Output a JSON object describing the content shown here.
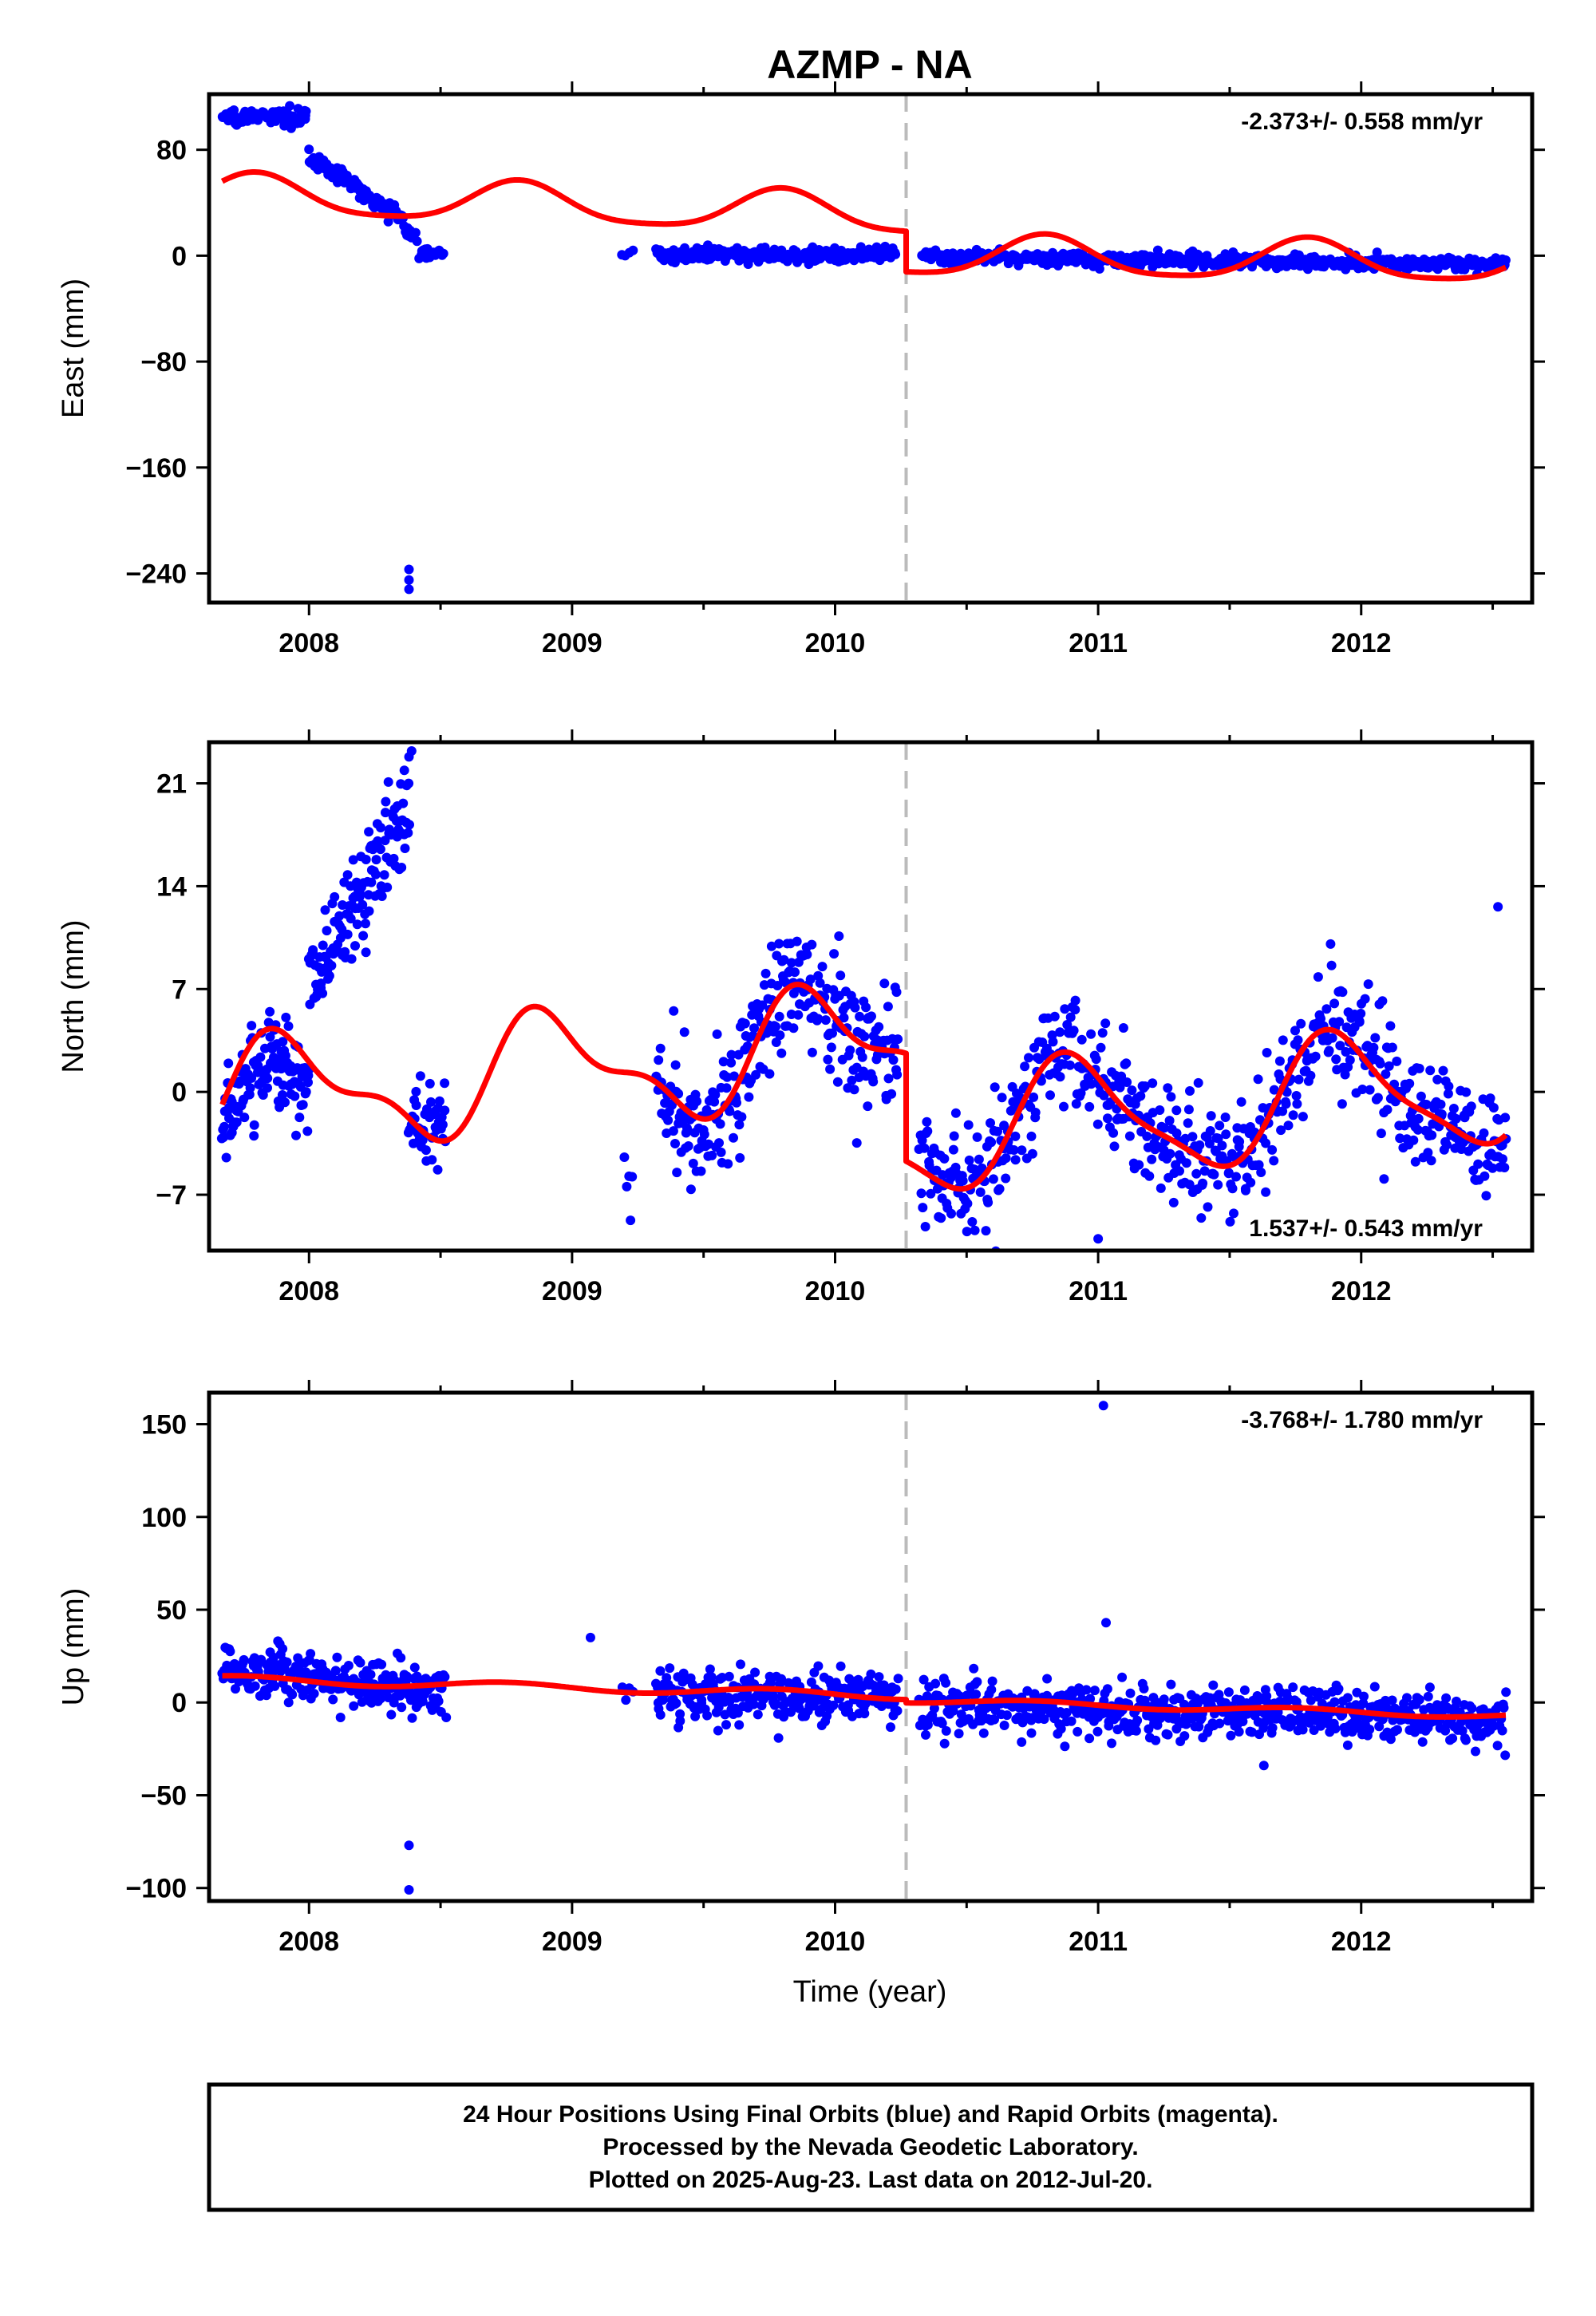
{
  "figure": {
    "title": "AZMP - NA",
    "xlabel": "Time (year)",
    "footer": [
      "24 Hour Positions Using Final Orbits (blue) and Rapid Orbits (magenta).",
      "Processed by the Nevada Geodetic Laboratory.",
      "Plotted on 2025-Aug-23. Last data on 2012-Jul-20."
    ],
    "colors": {
      "data": "#0000ff",
      "model": "#ff0000",
      "event_line": "#bbbbbb",
      "frame": "#000000"
    }
  },
  "chart_data": [
    {
      "type": "scatter",
      "ylabel": "East (mm)",
      "rate_text": "-2.373+/- 0.558 mm/yr",
      "rate_position": "top-right",
      "xlim": [
        2007.62,
        2012.65
      ],
      "ylim": [
        -262,
        122
      ],
      "yticks": [
        80,
        0,
        -80,
        -160,
        -240
      ],
      "xticks": [
        2008,
        2009,
        2010,
        2011,
        2012
      ],
      "event_line_x": 2010.27,
      "segments": [
        {
          "x_start": 2007.67,
          "x_end": 2007.99,
          "level": 105,
          "slope": 0,
          "noise": 2.5,
          "n": 120
        },
        {
          "x_start": 2008.0,
          "x_end": 2008.35,
          "level": 75,
          "slope": -130,
          "noise": 3,
          "n": 110
        },
        {
          "x_start": 2008.35,
          "x_end": 2008.41,
          "level": 27,
          "slope": -300,
          "noise": 3,
          "n": 15
        },
        {
          "x_start": 2008.42,
          "x_end": 2008.51,
          "level": 3,
          "slope": 0,
          "noise": 2.5,
          "n": 18
        },
        {
          "x_start": 2009.19,
          "x_end": 2009.23,
          "level": 2,
          "slope": 0,
          "noise": 1.5,
          "n": 4
        },
        {
          "x_start": 2009.32,
          "x_end": 2010.23,
          "level": 0.5,
          "slope": 0,
          "noise": 2.5,
          "n": 260
        },
        {
          "x_start": 2010.33,
          "x_end": 2012.55,
          "level": -1,
          "slope": -2.5,
          "noise": 2.5,
          "n": 560
        }
      ],
      "outliers": [
        {
          "x": 2008.38,
          "y": -237
        },
        {
          "x": 2008.38,
          "y": -245
        },
        {
          "x": 2008.38,
          "y": -252
        }
      ],
      "model": {
        "pre": {
          "x_start": 2007.67,
          "x_end": 2010.27,
          "offset": 38,
          "trend": -6,
          "ref_x": 2009.0,
          "amp_annual": 15,
          "phase_annual": 2007.55,
          "amp_semi": 3,
          "phase_semi": 2007.67
        },
        "post": {
          "x_start": 2010.27,
          "x_end": 2012.55,
          "offset": -3,
          "trend": -2.373,
          "ref_x": 2011.4,
          "amp_annual": 15,
          "phase_annual": 2010.55,
          "amp_semi": 3,
          "phase_semi": 2010.67
        }
      }
    },
    {
      "type": "scatter",
      "ylabel": "North (mm)",
      "rate_text": "1.537+/- 0.543 mm/yr",
      "rate_position": "bottom-right",
      "xlim": [
        2007.62,
        2012.65
      ],
      "ylim": [
        -10.8,
        23.8
      ],
      "yticks": [
        21,
        14,
        7,
        0,
        -7
      ],
      "xticks": [
        2008,
        2009,
        2010,
        2011,
        2012
      ],
      "event_line_x": 2010.27,
      "segments": [
        {
          "x_start": 2007.67,
          "x_end": 2008.0,
          "level": -2,
          "slope": 0,
          "noise": 1.5,
          "n": 130,
          "follow_model": true
        },
        {
          "x_start": 2008.0,
          "x_end": 2008.38,
          "level": 7,
          "slope": 32,
          "noise": 2.0,
          "n": 140
        },
        {
          "x_start": 2008.38,
          "x_end": 2008.52,
          "level": -2,
          "slope": 0,
          "noise": 2.0,
          "n": 45
        },
        {
          "x_start": 2009.2,
          "x_end": 2009.23,
          "level": -7,
          "slope": 0,
          "noise": 1.5,
          "n": 5
        },
        {
          "x_start": 2009.32,
          "x_end": 2010.24,
          "level": 0,
          "slope": 0,
          "noise": 2.2,
          "n": 290,
          "follow_model": true
        },
        {
          "x_start": 2010.32,
          "x_end": 2012.55,
          "level": 0,
          "slope": 0,
          "noise": 2.0,
          "n": 620,
          "follow_model": true
        }
      ],
      "outliers": [
        {
          "x": 2008.38,
          "y": 22.8
        },
        {
          "x": 2008.39,
          "y": 23.2
        },
        {
          "x": 2011.0,
          "y": -10
        },
        {
          "x": 2012.52,
          "y": 12.6
        }
      ],
      "model": {
        "pre": {
          "x_start": 2007.67,
          "x_end": 2010.27,
          "offset": 1.5,
          "trend": 1.5,
          "ref_x": 2009.0,
          "amp_annual": 3.5,
          "phase_annual": 2007.67,
          "amp_semi": 1.5,
          "phase_semi": 2007.69
        },
        "post": {
          "x_start": 2010.27,
          "x_end": 2012.55,
          "offset": -1.2,
          "trend": 1.537,
          "ref_x": 2011.4,
          "amp_annual": 4.0,
          "phase_annual": 2010.66,
          "amp_semi": 1.0,
          "phase_semi": 2010.7
        }
      }
    },
    {
      "type": "scatter",
      "ylabel": "Up (mm)",
      "rate_text": "-3.768+/- 1.780 mm/yr",
      "rate_position": "top-right",
      "xlim": [
        2007.62,
        2012.65
      ],
      "ylim": [
        -107,
        167
      ],
      "yticks": [
        150,
        100,
        50,
        0,
        -50,
        -100
      ],
      "xticks": [
        2008,
        2009,
        2010,
        2011,
        2012
      ],
      "event_line_x": 2010.27,
      "segments": [
        {
          "x_start": 2007.67,
          "x_end": 2008.52,
          "level": 20,
          "slope": -18,
          "noise": 7,
          "n": 240
        },
        {
          "x_start": 2009.19,
          "x_end": 2009.23,
          "level": 0,
          "slope": 0,
          "noise": 6,
          "n": 4
        },
        {
          "x_start": 2009.32,
          "x_end": 2010.24,
          "level": 4,
          "slope": 0,
          "noise": 7,
          "n": 260
        },
        {
          "x_start": 2010.32,
          "x_end": 2012.55,
          "level": -2,
          "slope": -3,
          "noise": 7,
          "n": 600
        }
      ],
      "outliers": [
        {
          "x": 2008.38,
          "y": -77
        },
        {
          "x": 2008.38,
          "y": -101
        },
        {
          "x": 2011.02,
          "y": 160
        },
        {
          "x": 2011.03,
          "y": 43
        },
        {
          "x": 2009.07,
          "y": 35
        },
        {
          "x": 2011.63,
          "y": -34
        }
      ],
      "model": {
        "pre": {
          "x_start": 2007.67,
          "x_end": 2010.27,
          "offset": 8,
          "trend": -3.5,
          "ref_x": 2009.0,
          "amp_annual": 2,
          "phase_annual": 2008.5,
          "amp_semi": 0,
          "phase_semi": 2008.0
        },
        "post": {
          "x_start": 2010.27,
          "x_end": 2012.55,
          "offset": -3,
          "trend": -3.768,
          "ref_x": 2011.4,
          "amp_annual": 1.5,
          "phase_annual": 2010.5,
          "amp_semi": 0,
          "phase_semi": 2010.5
        }
      }
    }
  ]
}
